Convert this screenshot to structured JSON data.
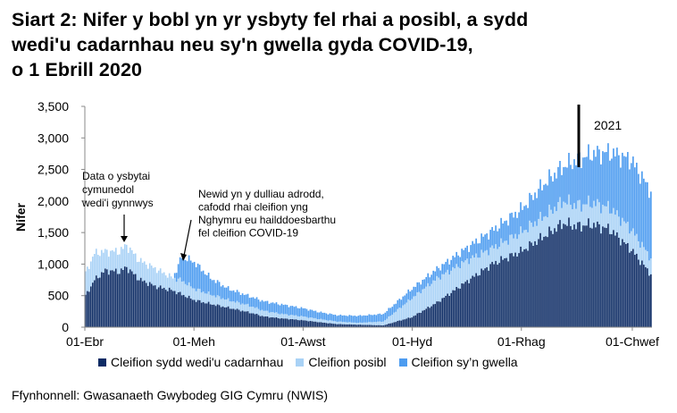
{
  "title": {
    "line1": "Siart 2: Nifer y bobl yn yr ysbyty fel rhai a posibl, a sydd",
    "line2": "wedi'u cadarnhau neu sy'n gwella gyda COVID-19,",
    "line3": "o 1 Ebrill 2020"
  },
  "source": "Ffynhonnell: Gwasanaeth Gwybodeg GIG Cymru (NWIS)",
  "colors": {
    "confirmed": "#0c2b64",
    "suspected": "#a9d2f6",
    "recovering": "#4d9cf0",
    "axis": "#888888"
  },
  "annotations": {
    "a1": [
      "Data o ysbytai",
      "cymunedol",
      "wedi'i gynnwys"
    ],
    "a2": [
      "Newid yn y dulliau adrodd,",
      "cafodd rhai cleifion yng",
      "Nghymru eu hailddoesbarthu",
      "fel cleifion COVID-19"
    ],
    "year": "2021"
  },
  "chart_data": {
    "type": "bar",
    "stacked": true,
    "ylabel": "Nifer",
    "xlabel": "",
    "ylim": [
      0,
      3500
    ],
    "yticks": [
      0,
      500,
      1000,
      1500,
      2000,
      2500,
      3000,
      3500
    ],
    "ytick_labels": [
      "0",
      "500",
      "1,000",
      "1,500",
      "2,000",
      "2,500",
      "3,000",
      "3,500"
    ],
    "xtick_labels": [
      "01-Ebr",
      "01-Meh",
      "01-Awst",
      "01-Hyd",
      "01-Rhag",
      "01-Chwef"
    ],
    "xtick_dates": [
      "2020-04-01",
      "2020-06-01",
      "2020-08-01",
      "2020-10-01",
      "2020-12-01",
      "2021-02-01"
    ],
    "x_start": "2020-04-01",
    "x_end": "2021-02-12",
    "anchor_dates": [
      "2020-04-01",
      "2020-04-06",
      "2020-04-12",
      "2020-04-20",
      "2020-04-24",
      "2020-05-01",
      "2020-05-10",
      "2020-05-20",
      "2020-05-25",
      "2020-06-01",
      "2020-06-10",
      "2020-06-20",
      "2020-07-01",
      "2020-07-10",
      "2020-07-20",
      "2020-08-01",
      "2020-08-10",
      "2020-08-20",
      "2020-09-01",
      "2020-09-15",
      "2020-10-01",
      "2020-10-15",
      "2020-11-01",
      "2020-11-15",
      "2020-12-01",
      "2020-12-15",
      "2020-12-25",
      "2021-01-01",
      "2021-01-10",
      "2021-01-20",
      "2021-02-01",
      "2021-02-12"
    ],
    "series": [
      {
        "name": "Cleifion sydd wedi'u cadarnhau",
        "values": [
          500,
          750,
          900,
          880,
          950,
          760,
          650,
          580,
          520,
          430,
          370,
          310,
          240,
          170,
          140,
          110,
          80,
          50,
          40,
          30,
          160,
          390,
          730,
          1000,
          1200,
          1460,
          1650,
          1600,
          1630,
          1550,
          1230,
          840
        ]
      },
      {
        "name": "Cleifion posibl",
        "values": [
          360,
          420,
          300,
          320,
          350,
          300,
          280,
          200,
          220,
          180,
          150,
          120,
          110,
          90,
          70,
          60,
          50,
          40,
          30,
          60,
          300,
          380,
          330,
          250,
          300,
          320,
          350,
          330,
          340,
          340,
          320,
          250
        ]
      },
      {
        "name": "Cleifion sy’n gwella",
        "values": [
          0,
          0,
          0,
          0,
          0,
          0,
          0,
          0,
          380,
          420,
          260,
          180,
          150,
          150,
          150,
          130,
          110,
          100,
          110,
          120,
          150,
          150,
          200,
          280,
          360,
          520,
          550,
          710,
          780,
          880,
          1100,
          1060
        ]
      }
    ],
    "legend_position": "bottom",
    "grid": false
  }
}
